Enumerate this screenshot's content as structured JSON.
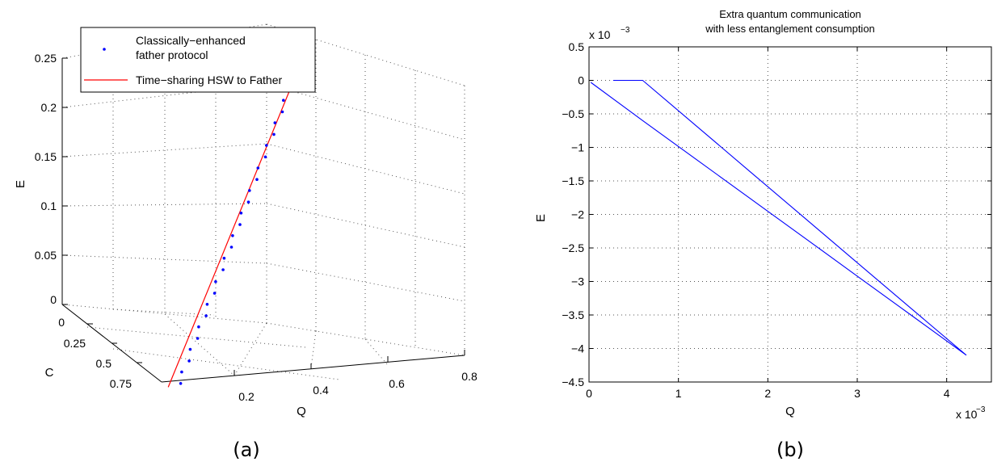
{
  "chart_data": [
    {
      "type": "line",
      "panel_label": "(a)",
      "projection": "3d",
      "xlabel": "Q",
      "ylabel": "C",
      "zlabel": "E",
      "xlim": [
        0,
        0.8
      ],
      "ylim": [
        0,
        0.75
      ],
      "zlim": [
        0,
        0.25
      ],
      "x_ticks": [
        "0.2",
        "0.4",
        "0.6",
        "0.8"
      ],
      "y_ticks": [
        "0",
        "0.25",
        "0.5",
        "0.75"
      ],
      "z_ticks": [
        "0",
        "0.05",
        "0.1",
        "0.15",
        "0.2",
        "0.25"
      ],
      "grid": true,
      "legend_position": "top-left",
      "series": [
        {
          "name": "Classically−enhanced father protocol",
          "legend_lines": [
            "Classically−enhanced",
            "father protocol"
          ],
          "style": "dots",
          "color": "#0000ff",
          "x": [
            0.03,
            0.04,
            0.06,
            0.07,
            0.09,
            0.1,
            0.12,
            0.13,
            0.15,
            0.16,
            0.18,
            0.19,
            0.21,
            0.22,
            0.24,
            0.25,
            0.27,
            0.28,
            0.3,
            0.31,
            0.33,
            0.34,
            0.36,
            0.37,
            0.39,
            0.4,
            0.42,
            0.43,
            0.45,
            0.46,
            0.48,
            0.5
          ],
          "y": [
            0.78,
            0.75,
            0.73,
            0.7,
            0.68,
            0.65,
            0.63,
            0.6,
            0.58,
            0.55,
            0.53,
            0.5,
            0.48,
            0.45,
            0.43,
            0.4,
            0.38,
            0.35,
            0.33,
            0.3,
            0.28,
            0.25,
            0.23,
            0.2,
            0.18,
            0.15,
            0.13,
            0.1,
            0.08,
            0.05,
            0.03,
            0.0
          ],
          "z": [
            0.0,
            0.008,
            0.016,
            0.024,
            0.032,
            0.04,
            0.048,
            0.056,
            0.064,
            0.072,
            0.081,
            0.089,
            0.097,
            0.105,
            0.113,
            0.121,
            0.129,
            0.137,
            0.145,
            0.153,
            0.161,
            0.169,
            0.177,
            0.185,
            0.193,
            0.201,
            0.209,
            0.217,
            0.225,
            0.233,
            0.241,
            0.25
          ]
        },
        {
          "name": "Time−sharing HSW to Father",
          "style": "line",
          "color": "#ff0000",
          "x": [
            0.0,
            0.5
          ],
          "y": [
            0.8,
            0.0
          ],
          "z": [
            0.0,
            0.25
          ]
        }
      ]
    },
    {
      "type": "line",
      "panel_label": "(b)",
      "title": "Extra quantum communication with less entanglement consumption",
      "title_lines": [
        "Extra quantum communication",
        "with less entanglement consumption"
      ],
      "xlabel": "Q",
      "ylabel": "E",
      "x_exponent_label": "x 10",
      "x_exponent": "−3",
      "y_exponent_label": "x 10",
      "y_exponent": "−3",
      "xlim": [
        0,
        4.5
      ],
      "ylim": [
        -4.5,
        0.5
      ],
      "x_ticks": [
        "0",
        "1",
        "2",
        "3",
        "4"
      ],
      "y_ticks": [
        "0.5",
        "0",
        "−0.5",
        "−1",
        "−1.5",
        "−2",
        "−2.5",
        "−3",
        "−3.5",
        "−4",
        "−4.5"
      ],
      "grid": true,
      "series": [
        {
          "color": "#0000ff",
          "x": [
            0.02,
            0.6,
            1.2,
            1.8,
            2.4,
            3.0,
            3.6,
            4.22,
            3.6,
            3.0,
            2.4,
            1.8,
            1.2,
            0.6,
            0.27
          ],
          "y": [
            -0.03,
            -0.6,
            -1.18,
            -1.76,
            -2.34,
            -2.92,
            -3.5,
            -4.1,
            -3.4,
            -2.72,
            -2.04,
            -1.36,
            -0.68,
            0.0,
            0.0
          ]
        }
      ]
    }
  ]
}
